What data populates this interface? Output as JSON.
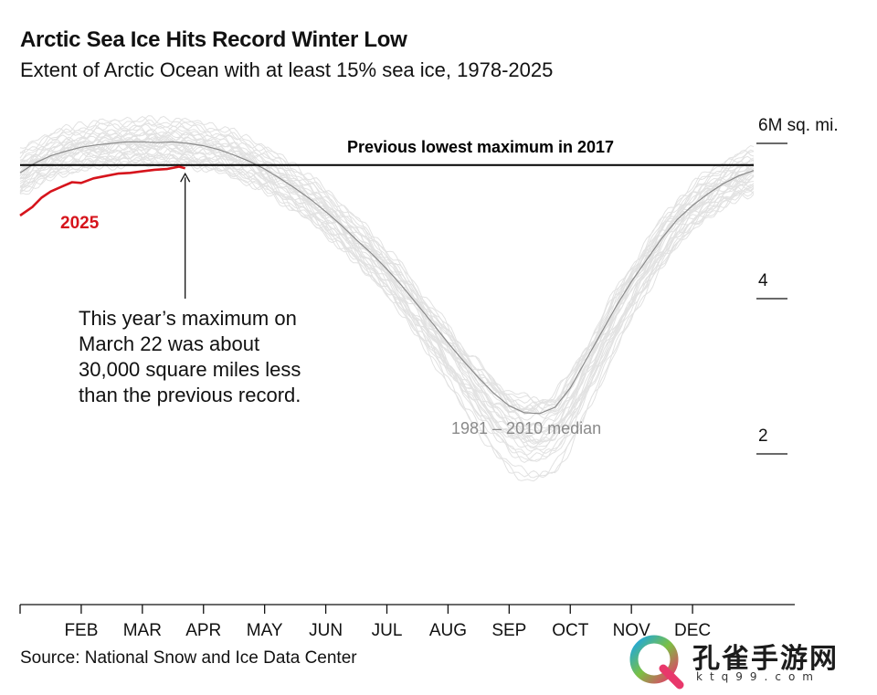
{
  "header": {
    "title": "Arctic Sea Ice Hits Record Winter Low",
    "subtitle": "Extent of Arctic Ocean with at least 15% sea ice, 1978-2025"
  },
  "footer": {
    "source": "Source: National Snow and Ice Data Center"
  },
  "watermark": {
    "brand_text": "孔雀手游网",
    "url_text": "ktq99.com",
    "logo_icon": "peacock-q-logo-icon"
  },
  "colors": {
    "year_2025": "#d6141c",
    "median": "#8a8a8a",
    "historical": "#e2e2e2",
    "reference": "#000000",
    "axis": "#111111"
  },
  "chart_data": {
    "type": "line",
    "title": "Arctic Sea Ice Hits Record Winter Low",
    "subtitle": "Extent of Arctic Ocean with at least 15% sea ice, 1978-2025",
    "x_unit": "month",
    "x_tick_labels": [
      "FEB",
      "MAR",
      "APR",
      "MAY",
      "JUN",
      "JUL",
      "AUG",
      "SEP",
      "OCT",
      "NOV",
      "DEC"
    ],
    "x_ticks": [
      1,
      2,
      3,
      4,
      5,
      6,
      7,
      8,
      9,
      10,
      11
    ],
    "xlim": [
      0,
      12
    ],
    "ylim": [
      0.1,
      6.3
    ],
    "y_tick_labels": [
      {
        "value": 6,
        "label": "6M sq. mi."
      },
      {
        "value": 4,
        "label": "4"
      },
      {
        "value": 2,
        "label": "2"
      }
    ],
    "grid": false,
    "reference_line": {
      "value": 5.72,
      "label": "Previous lowest maximum in 2017"
    },
    "series": [
      {
        "name": "2025",
        "role": "highlight",
        "x": [
          0,
          0.2,
          0.35,
          0.5,
          0.7,
          0.85,
          1.0,
          1.2,
          1.4,
          1.6,
          1.8,
          2.0,
          2.2,
          2.4,
          2.6,
          2.7
        ],
        "values": [
          5.07,
          5.18,
          5.3,
          5.38,
          5.45,
          5.5,
          5.49,
          5.55,
          5.58,
          5.61,
          5.62,
          5.64,
          5.66,
          5.67,
          5.7,
          5.68
        ]
      },
      {
        "name": "1981 – 2010 median",
        "role": "median",
        "x": [
          0,
          0.25,
          0.5,
          0.75,
          1.0,
          1.25,
          1.5,
          1.75,
          2.0,
          2.25,
          2.5,
          2.75,
          3.0,
          3.25,
          3.5,
          3.75,
          4.0,
          4.25,
          4.5,
          4.75,
          5.0,
          5.25,
          5.5,
          5.75,
          6.0,
          6.25,
          6.5,
          6.75,
          7.0,
          7.25,
          7.5,
          7.75,
          8.0,
          8.25,
          8.5,
          8.75,
          9.0,
          9.25,
          9.5,
          9.75,
          10.0,
          10.25,
          10.5,
          10.75,
          11.0,
          11.25,
          11.5,
          11.75,
          12.0
        ],
        "values": [
          5.62,
          5.75,
          5.84,
          5.9,
          5.95,
          5.98,
          6.0,
          6.02,
          6.02,
          6.01,
          6.02,
          6.0,
          5.97,
          5.92,
          5.85,
          5.77,
          5.67,
          5.55,
          5.42,
          5.28,
          5.12,
          4.95,
          4.76,
          4.58,
          4.38,
          4.16,
          3.92,
          3.68,
          3.43,
          3.2,
          2.98,
          2.78,
          2.62,
          2.53,
          2.52,
          2.6,
          2.85,
          3.2,
          3.55,
          3.9,
          4.22,
          4.5,
          4.78,
          5.02,
          5.2,
          5.35,
          5.48,
          5.58,
          5.65
        ]
      }
    ],
    "annotations": [
      {
        "text": "2025",
        "target": "2025 series"
      },
      {
        "text": "This year’s maximum on March 22 was about 30,000 square miles less than the previous record.",
        "target_x": 2.7,
        "target_y": 5.68
      },
      {
        "text": "1981 – 2010 median",
        "target": "median series"
      },
      {
        "text": "Previous lowest maximum in 2017",
        "target": "reference line"
      }
    ]
  }
}
